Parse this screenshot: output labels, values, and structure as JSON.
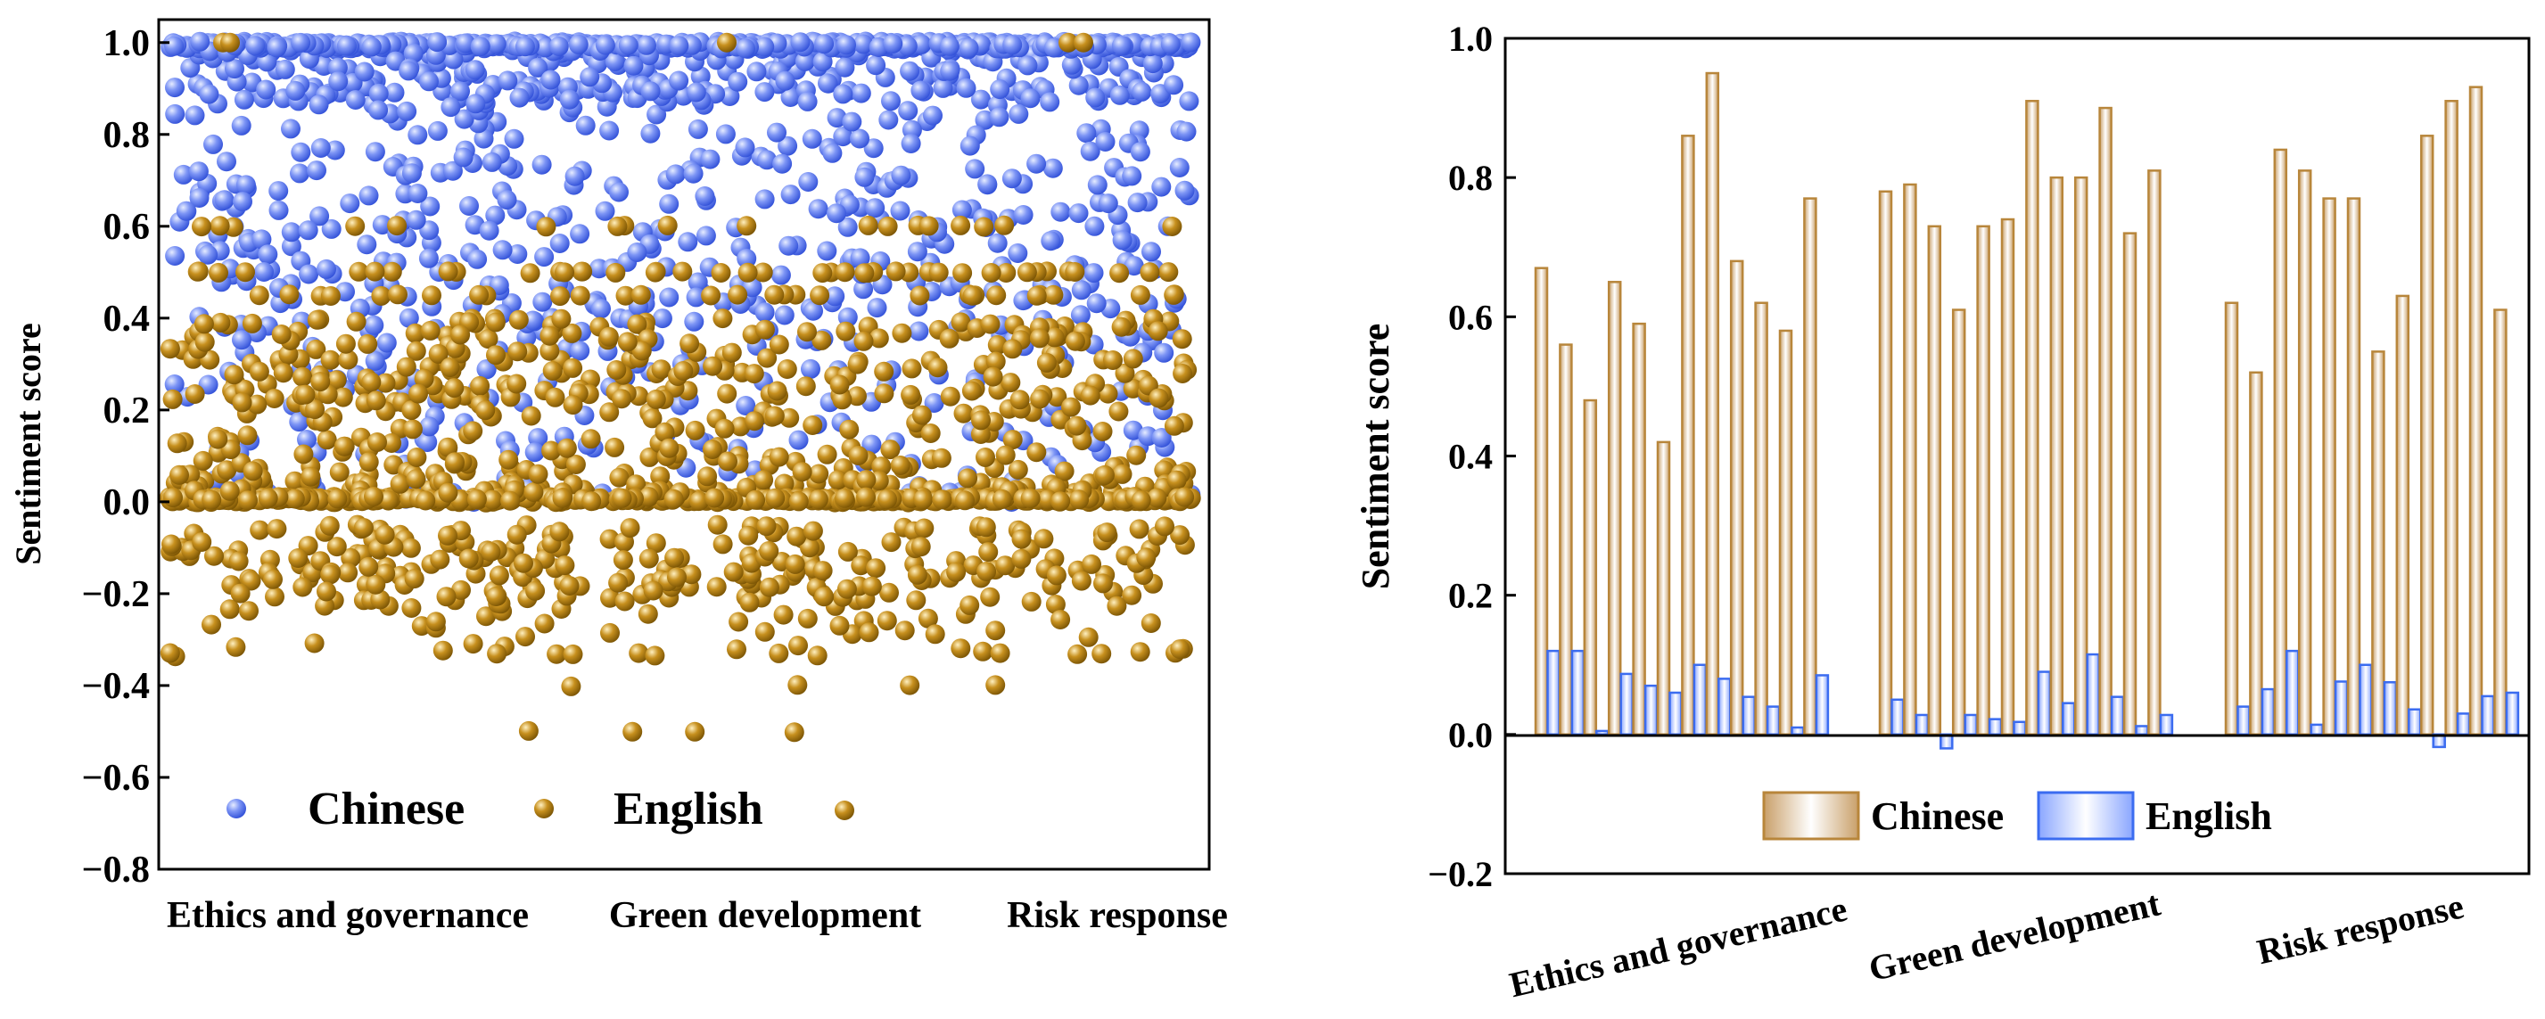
{
  "chart_data": [
    {
      "type": "scatter",
      "ylabel": "Sentiment score",
      "ylim": [
        -0.8,
        1.05
      ],
      "yticks": [
        -0.8,
        -0.6,
        -0.4,
        -0.2,
        0.0,
        0.2,
        0.4,
        0.6,
        0.8,
        1.0
      ],
      "ytick_labels": [
        "−0.8",
        "−0.6",
        "−0.4",
        "−0.2",
        "0.0",
        "0.2",
        "0.4",
        "0.6",
        "0.8",
        "1.0"
      ],
      "categories": [
        "Ethics and governance",
        "Green development",
        "Risk response"
      ],
      "legend": [
        "Chinese",
        "English"
      ],
      "legend_position": "lower-left",
      "series": [
        {
          "name": "Chinese",
          "color": "#5b78f0",
          "point_count": 1400,
          "note": "most points clustered at 1.0, spread through 0.0–1.0",
          "levels": [
            1.0,
            0.95,
            0.9,
            0.85,
            0.8,
            0.7,
            0.6,
            0.5,
            0.4,
            0.3,
            0.2,
            0.1,
            0.0
          ]
        },
        {
          "name": "English",
          "color": "#b8860b",
          "point_count": 1400,
          "note": "dense band at 0.0 and 0.0–0.5, sparse negatives down to −0.5",
          "min": -0.5,
          "max": 1.0,
          "levels": [
            0.5,
            0.4,
            0.25,
            0.2,
            0.15,
            0.1,
            0.0,
            -0.2,
            -0.33,
            -0.4,
            -0.5
          ]
        }
      ]
    },
    {
      "type": "bar",
      "ylabel": "Sentiment score",
      "ylim": [
        -0.2,
        1.0
      ],
      "yticks": [
        -0.2,
        0.0,
        0.2,
        0.4,
        0.6,
        0.8,
        1.0
      ],
      "ytick_labels": [
        "−0.2",
        "0.0",
        "0.2",
        "0.4",
        "0.6",
        "0.8",
        "1.0"
      ],
      "categories": [
        "Ethics and governance",
        "Green development",
        "Risk response"
      ],
      "legend": [
        "Chinese",
        "English"
      ],
      "legend_position": "bottom-center",
      "series": [
        {
          "name": "Chinese",
          "color": "#b8863b",
          "groups": [
            [
              0.67,
              0.56,
              0.48,
              0.65,
              0.59,
              0.42,
              0.86,
              0.95,
              0.68,
              0.62,
              0.58,
              0.77
            ],
            [
              0.78,
              0.79,
              0.73,
              0.61,
              0.73,
              0.74,
              0.91,
              0.8,
              0.8,
              0.9,
              0.72,
              0.81
            ],
            [
              0.62,
              0.52,
              0.84,
              0.81,
              0.77,
              0.77,
              0.55,
              0.63,
              0.86,
              0.91,
              0.93,
              0.61
            ]
          ]
        },
        {
          "name": "English",
          "color": "#3b6cf0",
          "groups": [
            [
              0.12,
              0.12,
              0.005,
              0.087,
              0.07,
              0.06,
              0.1,
              0.08,
              0.054,
              0.04,
              0.01,
              0.085
            ],
            [
              0.05,
              0.028,
              -0.02,
              0.028,
              0.022,
              0.018,
              0.09,
              0.045,
              0.115,
              0.054,
              0.012,
              0.028
            ],
            [
              0.04,
              0.065,
              0.12,
              0.014,
              0.076,
              0.1,
              0.075,
              0.036,
              -0.018,
              0.03,
              0.055,
              0.06
            ]
          ]
        }
      ]
    }
  ]
}
